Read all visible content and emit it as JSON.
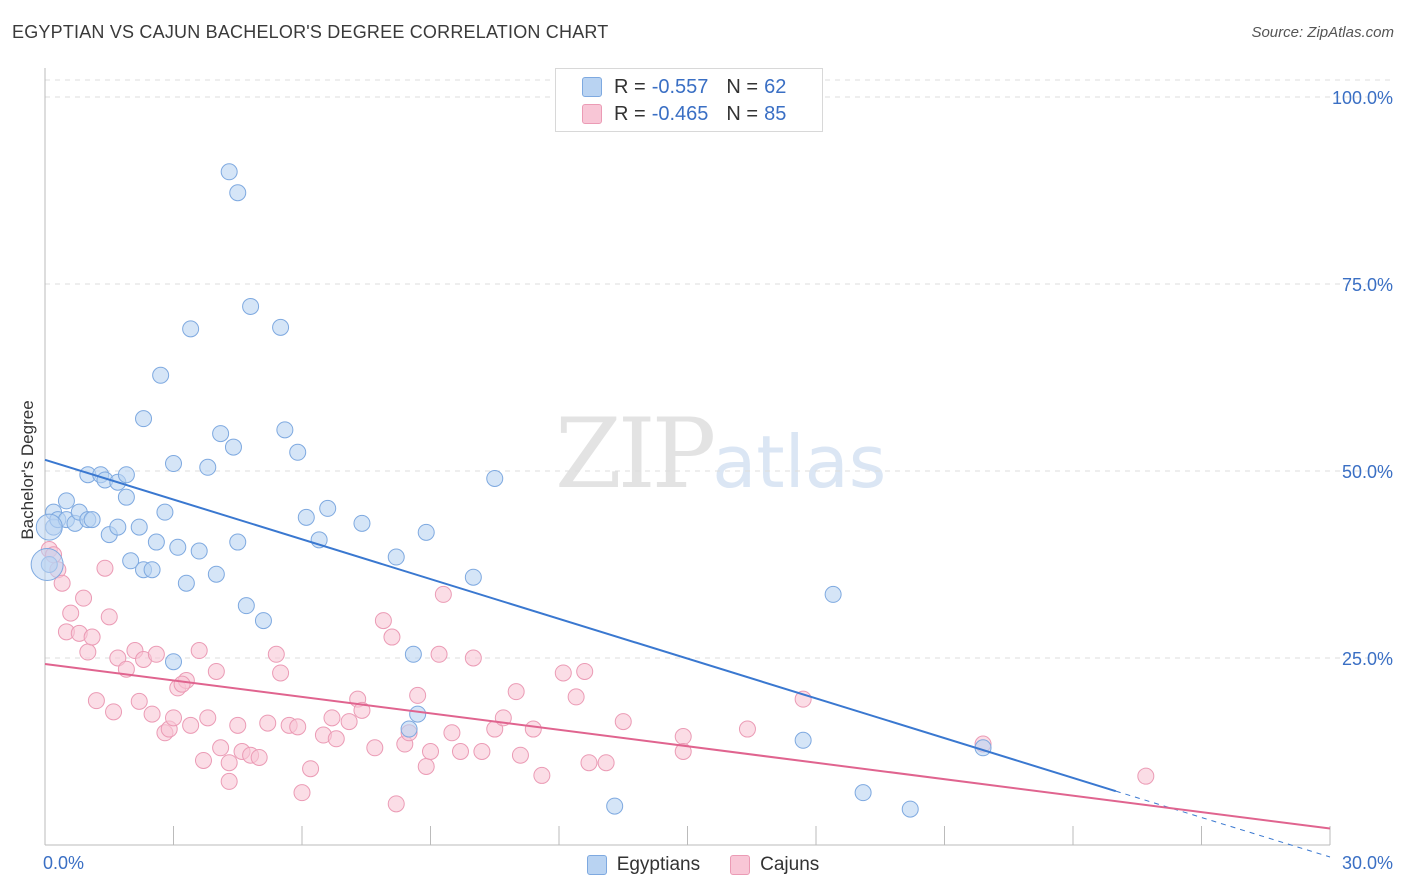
{
  "title": "EGYPTIAN VS CAJUN BACHELOR'S DEGREE CORRELATION CHART",
  "source": "Source: ZipAtlas.com",
  "watermark": {
    "zip": "ZIP",
    "atlas": "atlas"
  },
  "legend": {
    "rows": [
      {
        "r_label": "R =",
        "r_value": "-0.557",
        "n_label": "N =",
        "n_value": "62"
      },
      {
        "r_label": "R =",
        "r_value": "-0.465",
        "n_label": "N =",
        "n_value": "85"
      }
    ]
  },
  "colors": {
    "egyptians_fill": "#b9d3f2",
    "egyptians_stroke": "#7ea9e0",
    "egyptians_line": "#3a78d0",
    "cajuns_fill": "#f8c6d6",
    "cajuns_stroke": "#eb9bb5",
    "cajuns_line": "#e0648f",
    "tick_label": "#3a6fc4",
    "grid": "#dddddd"
  },
  "chart_data": {
    "type": "scatter",
    "title": "EGYPTIAN VS CAJUN BACHELOR'S DEGREE CORRELATION CHART",
    "xlabel": "",
    "ylabel": "Bachelor's Degree",
    "xlim": [
      0,
      30
    ],
    "ylim": [
      0,
      100
    ],
    "x_tick_labels": [
      "0.0%",
      "30.0%"
    ],
    "y_ticks": [
      25,
      50,
      75,
      100
    ],
    "y_tick_labels": [
      "25.0%",
      "50.0%",
      "75.0%",
      "100.0%"
    ],
    "grid": true,
    "legend_position": "top-center",
    "series": [
      {
        "name": "Egyptians",
        "r": -0.557,
        "n": 62,
        "trend": {
          "x": [
            0,
            25
          ],
          "y": [
            51.5,
            7.2
          ],
          "dashed_to": [
            30,
            -1.6
          ]
        },
        "points": [
          [
            0.2,
            44.5
          ],
          [
            0.2,
            42.5
          ],
          [
            0.3,
            43.5
          ],
          [
            0.5,
            46
          ],
          [
            0.5,
            43.5
          ],
          [
            0.7,
            43
          ],
          [
            0.8,
            44.5
          ],
          [
            1.0,
            43.5
          ],
          [
            1.1,
            43.5
          ],
          [
            1.0,
            49.5
          ],
          [
            1.3,
            49.5
          ],
          [
            1.4,
            48.8
          ],
          [
            1.7,
            48.5
          ],
          [
            1.9,
            49.5
          ],
          [
            1.9,
            46.5
          ],
          [
            1.5,
            41.5
          ],
          [
            1.7,
            42.5
          ],
          [
            2.2,
            42.5
          ],
          [
            2.0,
            38
          ],
          [
            2.3,
            36.8
          ],
          [
            2.5,
            36.8
          ],
          [
            2.6,
            40.5
          ],
          [
            2.8,
            44.5
          ],
          [
            3.0,
            51
          ],
          [
            3.1,
            39.8
          ],
          [
            3.3,
            35
          ],
          [
            3.6,
            39.3
          ],
          [
            3.8,
            50.5
          ],
          [
            4.0,
            36.2
          ],
          [
            4.1,
            55
          ],
          [
            4.4,
            53.2
          ],
          [
            4.5,
            40.5
          ],
          [
            4.7,
            32
          ],
          [
            5.1,
            30
          ],
          [
            5.6,
            55.5
          ],
          [
            5.9,
            52.5
          ],
          [
            6.1,
            43.8
          ],
          [
            6.4,
            40.8
          ],
          [
            6.6,
            45
          ],
          [
            7.4,
            43
          ],
          [
            8.2,
            38.5
          ],
          [
            8.9,
            41.8
          ],
          [
            10.0,
            35.8
          ],
          [
            10.5,
            49
          ],
          [
            2.3,
            57
          ],
          [
            2.7,
            62.8
          ],
          [
            3.4,
            69
          ],
          [
            4.8,
            72
          ],
          [
            5.5,
            69.2
          ],
          [
            4.3,
            90
          ],
          [
            4.5,
            87.2
          ],
          [
            8.6,
            25.5
          ],
          [
            8.7,
            17.5
          ],
          [
            8.5,
            15.5
          ],
          [
            3.0,
            24.5
          ],
          [
            13.3,
            5.2
          ],
          [
            17.7,
            14
          ],
          [
            18.4,
            33.5
          ],
          [
            19.1,
            7
          ],
          [
            20.2,
            4.8
          ],
          [
            21.9,
            13
          ],
          [
            0.1,
            37.5
          ]
        ]
      },
      {
        "name": "Cajuns",
        "r": -0.465,
        "n": 85,
        "trend": {
          "x": [
            0,
            30
          ],
          "y": [
            24.2,
            2.2
          ]
        },
        "points": [
          [
            0.1,
            39.5
          ],
          [
            0.2,
            38.8
          ],
          [
            0.3,
            36.8
          ],
          [
            0.4,
            35
          ],
          [
            0.5,
            28.5
          ],
          [
            0.6,
            31
          ],
          [
            0.8,
            28.3
          ],
          [
            0.9,
            33
          ],
          [
            1.0,
            25.8
          ],
          [
            1.1,
            27.8
          ],
          [
            1.2,
            19.3
          ],
          [
            1.4,
            37
          ],
          [
            1.5,
            30.5
          ],
          [
            1.6,
            17.8
          ],
          [
            1.7,
            25
          ],
          [
            1.9,
            23.5
          ],
          [
            2.1,
            26
          ],
          [
            2.2,
            19.2
          ],
          [
            2.3,
            24.8
          ],
          [
            2.5,
            17.5
          ],
          [
            2.6,
            25.5
          ],
          [
            2.8,
            15
          ],
          [
            2.9,
            15.5
          ],
          [
            3.0,
            17
          ],
          [
            3.1,
            21
          ],
          [
            3.3,
            22
          ],
          [
            3.4,
            16
          ],
          [
            3.6,
            26
          ],
          [
            3.7,
            11.3
          ],
          [
            3.8,
            17
          ],
          [
            4.0,
            23.2
          ],
          [
            4.1,
            13
          ],
          [
            4.3,
            8.5
          ],
          [
            4.3,
            11
          ],
          [
            4.5,
            16
          ],
          [
            4.6,
            12.5
          ],
          [
            4.8,
            12
          ],
          [
            5.0,
            11.7
          ],
          [
            5.2,
            16.3
          ],
          [
            5.4,
            25.5
          ],
          [
            5.5,
            23
          ],
          [
            5.7,
            16
          ],
          [
            5.9,
            15.8
          ],
          [
            6.0,
            7
          ],
          [
            6.2,
            10.2
          ],
          [
            6.5,
            14.7
          ],
          [
            6.7,
            17
          ],
          [
            6.8,
            14.2
          ],
          [
            7.1,
            16.5
          ],
          [
            7.3,
            19.5
          ],
          [
            7.4,
            18
          ],
          [
            7.7,
            13
          ],
          [
            7.9,
            30
          ],
          [
            8.1,
            27.8
          ],
          [
            8.2,
            5.5
          ],
          [
            8.4,
            13.5
          ],
          [
            8.5,
            15
          ],
          [
            8.7,
            20
          ],
          [
            8.9,
            10.5
          ],
          [
            9.0,
            12.5
          ],
          [
            9.2,
            25.5
          ],
          [
            9.3,
            33.5
          ],
          [
            9.5,
            15
          ],
          [
            9.7,
            12.5
          ],
          [
            10.0,
            25
          ],
          [
            10.2,
            12.5
          ],
          [
            10.5,
            15.5
          ],
          [
            10.7,
            17
          ],
          [
            11.0,
            20.5
          ],
          [
            11.1,
            12
          ],
          [
            11.4,
            15.5
          ],
          [
            11.6,
            9.3
          ],
          [
            12.1,
            23
          ],
          [
            12.4,
            19.8
          ],
          [
            12.6,
            23.2
          ],
          [
            12.7,
            11
          ],
          [
            13.1,
            11
          ],
          [
            13.5,
            16.5
          ],
          [
            14.9,
            14.5
          ],
          [
            14.9,
            12.5
          ],
          [
            16.4,
            15.5
          ],
          [
            17.7,
            19.5
          ],
          [
            21.9,
            13.5
          ],
          [
            25.7,
            9.2
          ],
          [
            3.2,
            21.5
          ]
        ]
      }
    ]
  }
}
